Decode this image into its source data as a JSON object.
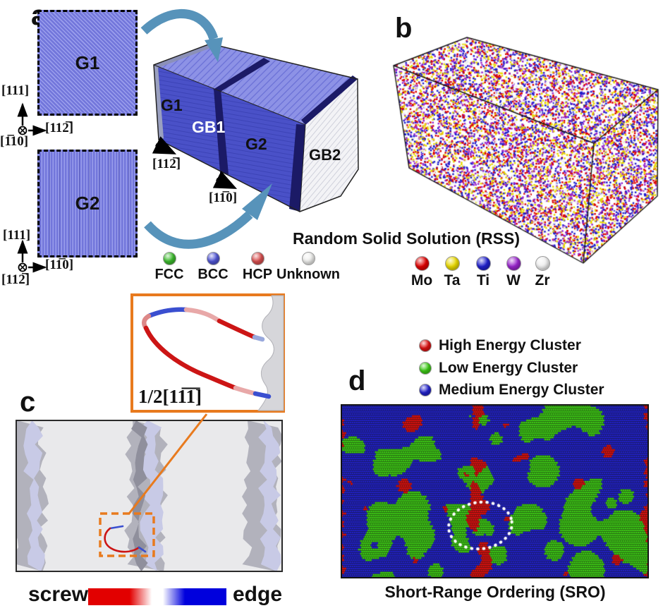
{
  "figure": {
    "panel_a": {
      "label": "a",
      "g1_square_label": "G1",
      "g2_square_label": "G2",
      "axes_top": {
        "up": "[111]",
        "right": "[112̅]",
        "out": "[1̅10]"
      },
      "axes_bottom": {
        "up": "[111]",
        "right": "[11̅0]",
        "out": "[112̅]"
      },
      "box_labels": {
        "g1": "G1",
        "gb1": "GB1",
        "g2": "G2",
        "gb2": "GB2"
      },
      "arrow_labels": {
        "a1": "[112̅]",
        "a2": "[11̅0]"
      },
      "legend": [
        {
          "label": "FCC",
          "color": "#3dbb2e"
        },
        {
          "label": "BCC",
          "color": "#5055d4"
        },
        {
          "label": "HCP",
          "color": "#d95050"
        },
        {
          "label": "Unknown",
          "color": "#f0f0ee"
        }
      ]
    },
    "panel_b": {
      "label": "b",
      "caption": "Random Solid Solution (RSS)",
      "legend": [
        {
          "label": "Mo",
          "color": "#dd0000"
        },
        {
          "label": "Ta",
          "color": "#e8d800"
        },
        {
          "label": "Ti",
          "color": "#2020cc"
        },
        {
          "label": "W",
          "color": "#9925cc"
        },
        {
          "label": "Zr",
          "color": "#efefef"
        }
      ]
    },
    "panel_c": {
      "label": "c",
      "inset_label": "1/2[11̅1̅]",
      "colorbar": {
        "left": "screw",
        "right": "edge",
        "left_color": "#e20000",
        "right_color": "#0000dd"
      },
      "accent_color": "#e87a1e"
    },
    "panel_d": {
      "label": "d",
      "caption": "Short-Range Ordering (SRO)",
      "highlight_circle_color": "#ffffff",
      "legend": [
        {
          "label": "High Energy Cluster",
          "color": "#dd1111"
        },
        {
          "label": "Low Energy Cluster",
          "color": "#3ecc17"
        },
        {
          "label": "Medium Energy Cluster",
          "color": "#2222cc"
        }
      ]
    }
  }
}
